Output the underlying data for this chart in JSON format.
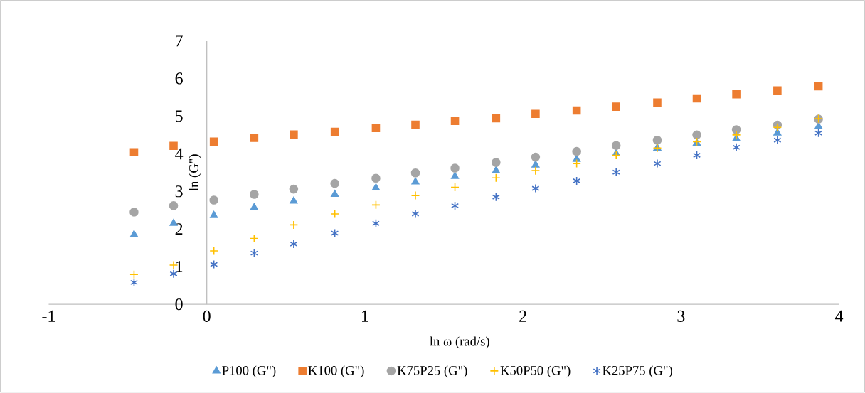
{
  "chart_data": {
    "type": "scatter",
    "xlabel": "ln ω  (rad/s)",
    "ylabel": "ln (G\")",
    "x": [
      -0.46,
      -0.21,
      0.045,
      0.3,
      0.55,
      0.81,
      1.07,
      1.32,
      1.57,
      1.83,
      2.08,
      2.34,
      2.59,
      2.85,
      3.1,
      3.35,
      3.61,
      3.87
    ],
    "xlim": [
      -1,
      4
    ],
    "xticks": [
      -1,
      0,
      1,
      2,
      3,
      4
    ],
    "ylim": [
      0,
      7
    ],
    "yticks": [
      0,
      1,
      2,
      3,
      4,
      5,
      6,
      7
    ],
    "grid": false,
    "legend": "bottom",
    "series": [
      {
        "name": "P100 (G\")",
        "color": "#5b9bd5",
        "marker": "triangle",
        "values": [
          1.85,
          2.15,
          2.36,
          2.57,
          2.74,
          2.92,
          3.09,
          3.25,
          3.4,
          3.55,
          3.7,
          3.85,
          4.0,
          4.15,
          4.28,
          4.4,
          4.55,
          4.72
        ]
      },
      {
        "name": "K100 (G\")",
        "color": "#ed7d31",
        "marker": "square",
        "values": [
          4.04,
          4.21,
          4.32,
          4.42,
          4.51,
          4.58,
          4.68,
          4.77,
          4.87,
          4.94,
          5.06,
          5.15,
          5.25,
          5.36,
          5.47,
          5.58,
          5.68,
          5.79
        ]
      },
      {
        "name": "K75P25 (G\")",
        "color": "#a5a5a5",
        "marker": "circle",
        "values": [
          2.45,
          2.62,
          2.77,
          2.92,
          3.06,
          3.21,
          3.35,
          3.49,
          3.62,
          3.77,
          3.91,
          4.06,
          4.22,
          4.36,
          4.5,
          4.64,
          4.76,
          4.92
        ]
      },
      {
        "name": "K50P50 (G\")",
        "color": "#ffc000",
        "marker": "cross",
        "values": [
          0.79,
          1.04,
          1.42,
          1.75,
          2.11,
          2.4,
          2.64,
          2.89,
          3.11,
          3.36,
          3.55,
          3.74,
          3.96,
          4.15,
          4.32,
          4.5,
          4.7,
          4.93
        ]
      },
      {
        "name": "K25P75  (G\")",
        "color": "#4472c4",
        "values": [
          0.58,
          0.81,
          1.06,
          1.36,
          1.6,
          1.89,
          2.15,
          2.4,
          2.62,
          2.85,
          3.08,
          3.28,
          3.51,
          3.74,
          3.96,
          4.17,
          4.36,
          4.55
        ]
      }
    ]
  }
}
